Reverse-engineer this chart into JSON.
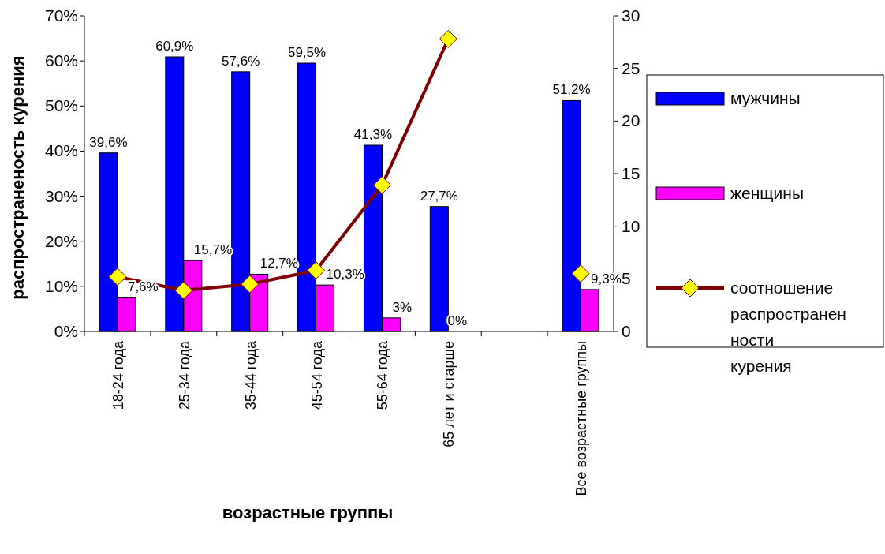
{
  "chart_data": {
    "type": "bar",
    "xlabel": "возрастные группы",
    "ylabel": "распространеность курения",
    "categories": [
      "18-24 года",
      "25-34 года",
      "35-44 года",
      "45-54 года",
      "55-64 года",
      "65 лет и старше",
      null,
      "Все возрастные группы"
    ],
    "series": [
      {
        "name": "мужчины",
        "color": "#0000ff",
        "values": [
          39.6,
          60.9,
          57.6,
          59.5,
          41.3,
          27.7,
          null,
          51.2
        ],
        "value_labels": [
          "39,6%",
          "60,9%",
          "57,6%",
          "59,5%",
          "41,3%",
          "27,7%",
          null,
          "51,2%"
        ]
      },
      {
        "name": "женщины",
        "color": "#ff00ff",
        "values": [
          7.6,
          15.7,
          12.7,
          10.3,
          3,
          0,
          null,
          9.3
        ],
        "value_labels": [
          "7,6%",
          "15,7%",
          "12,7%",
          "10,3%",
          "3%",
          "0%",
          null,
          "9,3%"
        ]
      },
      {
        "name": "соотношение распространенности курения",
        "type": "line",
        "axis": "y2",
        "color": "#800000",
        "marker": "diamond",
        "values": [
          5.2,
          3.9,
          4.5,
          5.8,
          13.9,
          27.8,
          null,
          5.5
        ]
      }
    ],
    "ylim": [
      0,
      70
    ],
    "yticks": [
      {
        "value": 0,
        "label": "0%"
      },
      {
        "value": 10,
        "label": "10%"
      },
      {
        "value": 20,
        "label": "20%"
      },
      {
        "value": 30,
        "label": "30%"
      },
      {
        "value": 40,
        "label": "40%"
      },
      {
        "value": 50,
        "label": "50%"
      },
      {
        "value": 60,
        "label": "60%"
      },
      {
        "value": 70,
        "label": "70%"
      }
    ],
    "y2lim": [
      0,
      30
    ],
    "y2ticks": [
      0,
      5,
      10,
      15,
      20,
      25,
      30
    ],
    "legend": "right"
  }
}
